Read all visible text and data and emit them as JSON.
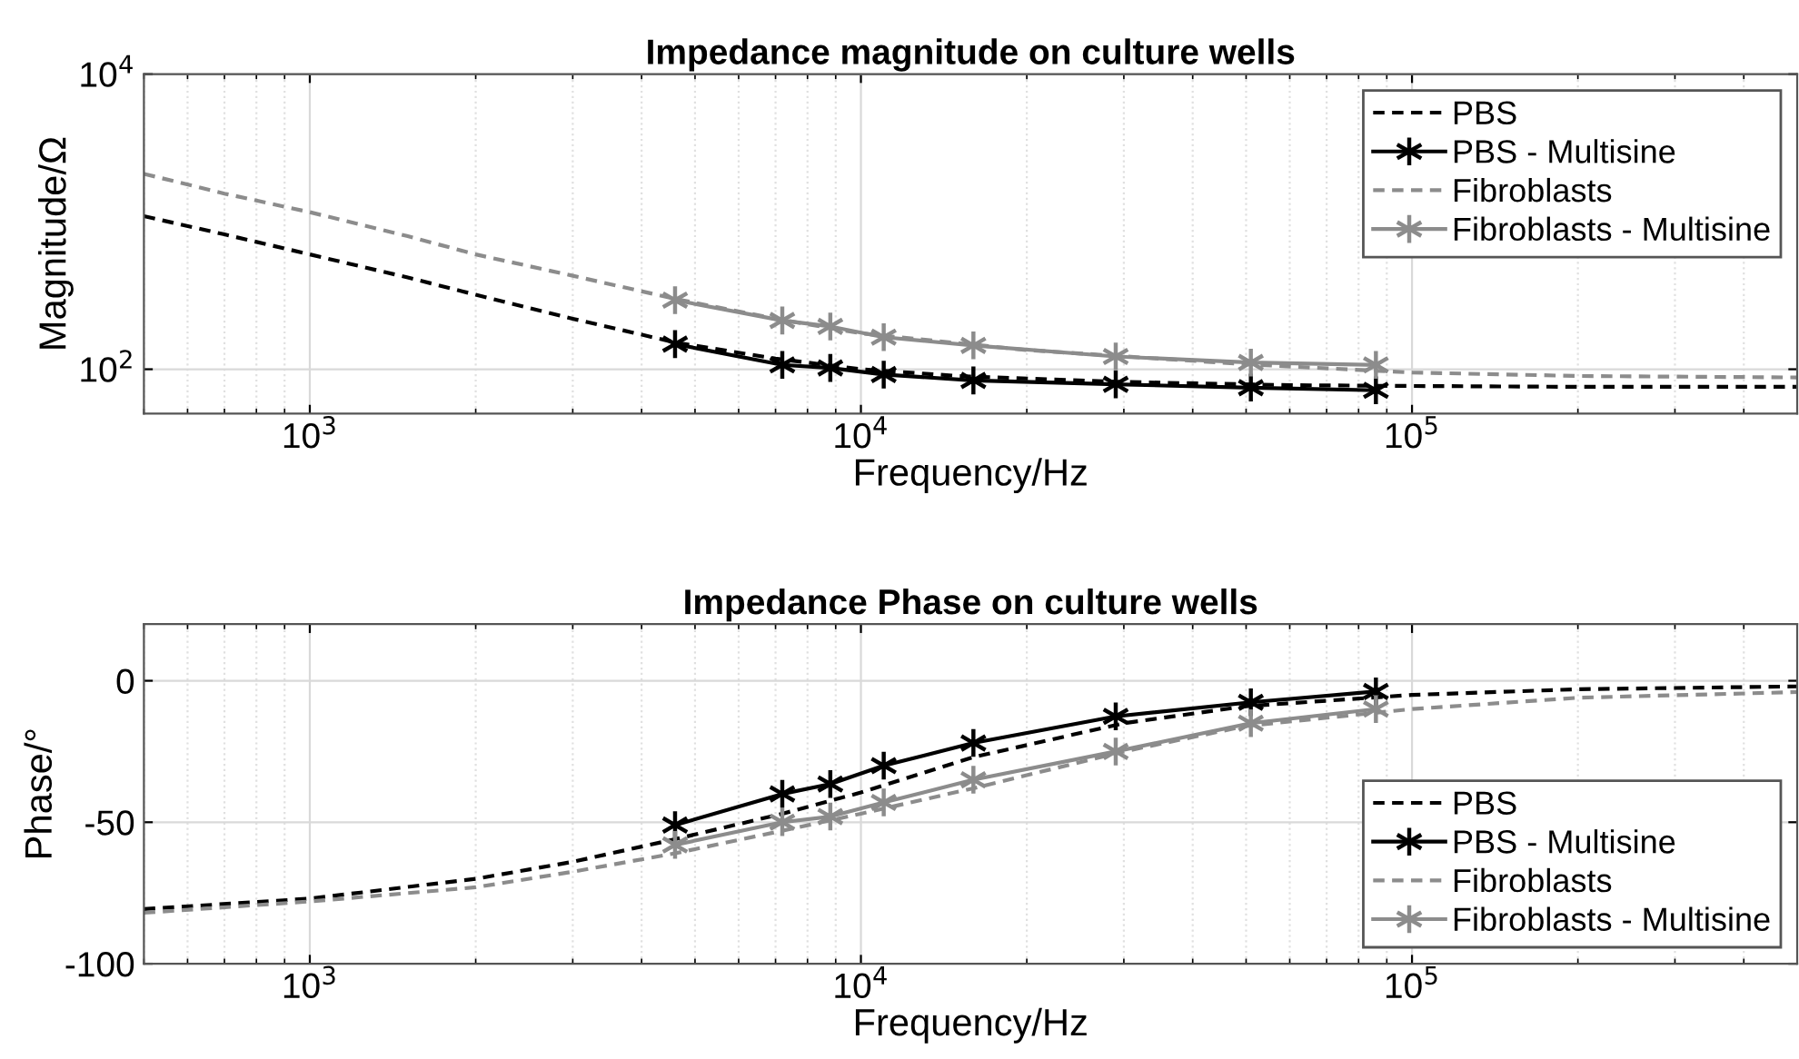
{
  "chart_data": [
    {
      "type": "line",
      "title": "Impedance magnitude on culture wells",
      "xlabel": "Frequency/Hz",
      "ylabel": "Magnitude/Ω",
      "log": "xy",
      "xlim": [
        500,
        500000
      ],
      "xticks": [
        {
          "value": 1000,
          "label": "10$^{3}$"
        },
        {
          "value": 10000,
          "label": "10$^{4}$"
        },
        {
          "value": 100000,
          "label": "10$^{5}$"
        }
      ],
      "ylim": [
        50,
        10000
      ],
      "yticks": [
        {
          "value": 100,
          "label": "10$^{2}$"
        },
        {
          "value": 10000,
          "label": "10$^{4}$"
        }
      ],
      "grid": true,
      "legend": "top right",
      "series": [
        {
          "name": "PBS",
          "color": "#000000",
          "line_style": "dashed",
          "marker": "none",
          "x": [
            500,
            700,
            1000,
            1500,
            2000,
            3000,
            4600,
            7000,
            10000,
            15000,
            30000,
            60000,
            100000,
            200000,
            500000
          ],
          "values": [
            1090,
            820,
            600,
            420,
            320,
            220,
            152,
            118,
            100,
            90,
            82,
            78,
            77,
            76,
            76
          ]
        },
        {
          "name": "PBS - Multisine",
          "color": "#000000",
          "line_style": "solid",
          "marker": "cross",
          "x": [
            4600,
            7200,
            8800,
            11000,
            16000,
            29000,
            51000,
            86000
          ],
          "values": [
            148,
            107,
            102,
            92,
            84,
            79,
            75,
            72
          ]
        },
        {
          "name": "Fibroblasts",
          "color": "#8c8c8c",
          "line_style": "dashed",
          "marker": "none",
          "x": [
            500,
            700,
            1000,
            1500,
            2000,
            3000,
            4600,
            7000,
            10000,
            20000,
            50000,
            100000,
            200000,
            500000
          ],
          "values": [
            2110,
            1550,
            1160,
            800,
            600,
            430,
            300,
            220,
            175,
            135,
            108,
            95,
            90,
            88
          ]
        },
        {
          "name": "Fibroblasts - Multisine",
          "color": "#8c8c8c",
          "line_style": "solid",
          "marker": "cross",
          "x": [
            4600,
            7200,
            8800,
            11000,
            16000,
            29000,
            51000,
            86000
          ],
          "values": [
            294,
            214,
            195,
            165,
            145,
            122,
            111,
            107
          ]
        }
      ]
    },
    {
      "type": "line",
      "title": "Impedance Phase on culture wells",
      "xlabel": "Frequency/Hz",
      "ylabel": "Phase/°",
      "log": "x",
      "xlim": [
        500,
        500000
      ],
      "xticks": [
        {
          "value": 1000,
          "label": "10$^{3}$"
        },
        {
          "value": 10000,
          "label": "10$^{4}$"
        },
        {
          "value": 100000,
          "label": "10$^{5}$"
        }
      ],
      "ylim": [
        -100,
        20
      ],
      "yticks": [
        -100,
        -50,
        0
      ],
      "grid": true,
      "legend": "bottom right",
      "series": [
        {
          "name": "PBS",
          "color": "#000000",
          "line_style": "dashed",
          "marker": "none",
          "x": [
            500,
            1000,
            2000,
            3000,
            4600,
            7200,
            10000,
            16000,
            30000,
            50000,
            100000,
            200000,
            500000
          ],
          "values": [
            -80.7,
            -77,
            -70,
            -64,
            -56,
            -47,
            -39.5,
            -27,
            -15,
            -9,
            -5,
            -3,
            -2
          ]
        },
        {
          "name": "PBS - Multisine",
          "color": "#000000",
          "line_style": "solid",
          "marker": "cross",
          "x": [
            4600,
            7200,
            8800,
            11000,
            16000,
            29000,
            51000,
            86000
          ],
          "values": [
            -51,
            -40,
            -36.5,
            -30,
            -22,
            -12.6,
            -7.6,
            -3.8
          ]
        },
        {
          "name": "Fibroblasts",
          "color": "#8c8c8c",
          "line_style": "dashed",
          "marker": "none",
          "x": [
            500,
            1000,
            2000,
            3000,
            4600,
            7200,
            10000,
            16000,
            30000,
            50000,
            100000,
            200000,
            500000
          ],
          "values": [
            -82,
            -78,
            -73,
            -67.5,
            -61,
            -53,
            -47,
            -38,
            -25,
            -16,
            -10,
            -6,
            -4
          ]
        },
        {
          "name": "Fibroblasts - Multisine",
          "color": "#8c8c8c",
          "line_style": "solid",
          "marker": "cross",
          "x": [
            4600,
            7200,
            8800,
            11000,
            16000,
            29000,
            51000,
            86000
          ],
          "values": [
            -58,
            -50,
            -48,
            -43,
            -35,
            -25,
            -15,
            -10
          ]
        }
      ]
    }
  ]
}
